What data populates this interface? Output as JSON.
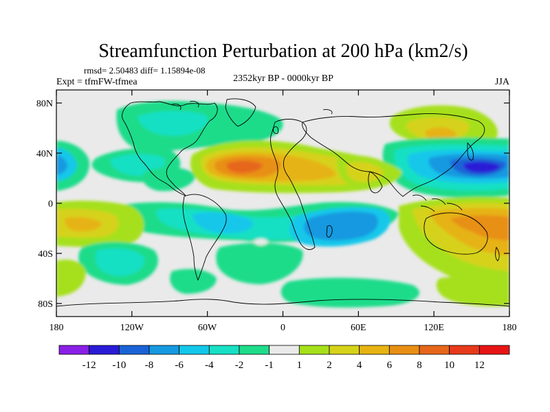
{
  "title": "Streamfunction Perturbation at 200 hPa (km2/s)",
  "stats_line": "rmsd= 2.50483 diff= 1.15894e-08",
  "experiment": "Expt = tfmFW-tfmea",
  "period": "2352kyr BP - 0000kyr BP",
  "season": "JJA",
  "y_ticks": [
    "80N",
    "40N",
    "0",
    "40S",
    "80S"
  ],
  "x_ticks": [
    "180",
    "120W",
    "60W",
    "0",
    "60E",
    "120E",
    "180"
  ],
  "colorbar": {
    "colors": [
      "#8a1fe6",
      "#2a1bd6",
      "#1a63d6",
      "#1599e0",
      "#13c7ea",
      "#17e0c4",
      "#1fdc8a",
      "#eaeaea",
      "#a6e01b",
      "#d6d21a",
      "#e6b313",
      "#e88f13",
      "#e6661a",
      "#e63a1a",
      "#e61414"
    ],
    "labels": [
      "-12",
      "-10",
      "-8",
      "-6",
      "-4",
      "-2",
      "-1",
      "1",
      "2",
      "4",
      "6",
      "8",
      "10",
      "12"
    ]
  },
  "palette": {
    "neutral": "#eaeaea",
    "mint": "#1fdc8a",
    "teal": "#17e0c4",
    "cyan": "#13c7ea",
    "blue": "#1599e0",
    "dblue": "#1a63d6",
    "indigo": "#2a1bd6",
    "lime": "#a6e01b",
    "yellow": "#d6d21a",
    "gold": "#e6b313",
    "orange": "#e88f13",
    "dorange": "#e6661a"
  }
}
